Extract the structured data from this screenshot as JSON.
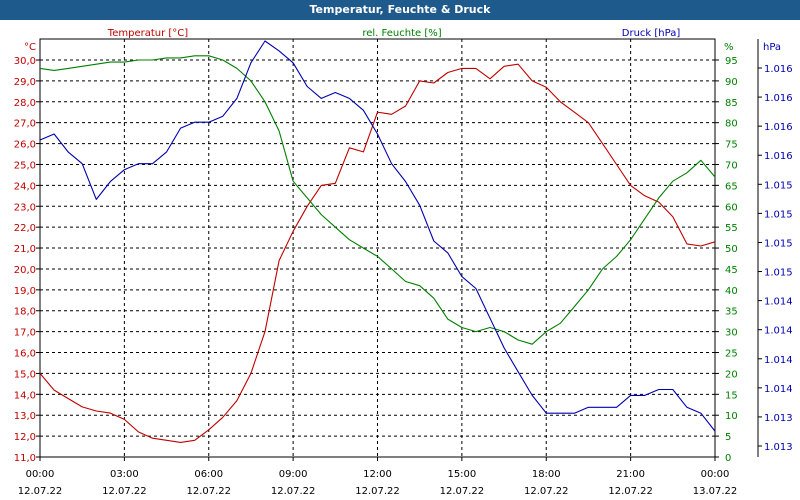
{
  "window_title": "Temperatur, Feuchte & Druck",
  "colors": {
    "title_bg": "#1f5a8c",
    "temperature": "#c00000",
    "humidity": "#008000",
    "pressure": "#0000b0",
    "axis": "#000000",
    "grid": "#000000"
  },
  "chart_data": {
    "type": "line",
    "title": "Temperatur, Feuchte & Druck",
    "x_ticks": [
      {
        "time": "00:00",
        "date": "12.07.22"
      },
      {
        "time": "03:00",
        "date": "12.07.22"
      },
      {
        "time": "06:00",
        "date": "12.07.22"
      },
      {
        "time": "09:00",
        "date": "12.07.22"
      },
      {
        "time": "12:00",
        "date": "12.07.22"
      },
      {
        "time": "15:00",
        "date": "12.07.22"
      },
      {
        "time": "18:00",
        "date": "12.07.22"
      },
      {
        "time": "21:00",
        "date": "12.07.22"
      },
      {
        "time": "00:00",
        "date": "13.07.22"
      }
    ],
    "xlim_hours": [
      0,
      24
    ],
    "grid": true,
    "axes": {
      "temperature": {
        "label": "Temperatur [°C]",
        "unit": "°C",
        "range": [
          11.0,
          30.0
        ],
        "ticks": [
          "30,0",
          "29,0",
          "28,0",
          "27,0",
          "26,0",
          "25,0",
          "24,0",
          "23,0",
          "22,0",
          "21,0",
          "20,0",
          "19,0",
          "18,0",
          "17,0",
          "16,0",
          "15,0",
          "14,0",
          "13,0",
          "12,0",
          "11,0"
        ]
      },
      "humidity": {
        "label": "rel. Feuchte [%]",
        "unit": "%",
        "range": [
          0,
          95
        ],
        "ticks": [
          "95",
          "90",
          "85",
          "80",
          "75",
          "70",
          "65",
          "60",
          "55",
          "50",
          "45",
          "40",
          "35",
          "30",
          "25",
          "20",
          "15",
          "10",
          "5",
          "0"
        ]
      },
      "pressure": {
        "label": "Druck [hPa]",
        "unit": "hPa",
        "range": [
          1012.85,
          1016.2
        ],
        "ticks": [
          "1.016",
          "1.016",
          "1.016",
          "1.016",
          "1.015",
          "1.015",
          "1.015",
          "1.015",
          "1.014",
          "1.014",
          "1.014",
          "1.014",
          "1.013",
          "1.013"
        ]
      }
    },
    "series": [
      {
        "name": "Temperatur [°C]",
        "axis": "temperature",
        "color": "#c00000",
        "x": [
          0,
          0.5,
          1,
          1.5,
          2,
          2.5,
          3,
          3.5,
          4,
          4.5,
          5,
          5.5,
          6,
          6.5,
          7,
          7.5,
          8,
          8.5,
          9,
          9.5,
          10,
          10.5,
          11,
          11.5,
          12,
          12.5,
          13,
          13.5,
          14,
          14.5,
          15,
          15.5,
          16,
          16.5,
          17,
          17.5,
          18,
          18.5,
          19,
          19.5,
          20,
          20.5,
          21,
          21.5,
          22,
          22.5,
          23,
          23.5,
          24
        ],
        "values": [
          15.0,
          14.2,
          13.8,
          13.4,
          13.2,
          13.1,
          12.8,
          12.2,
          11.9,
          11.8,
          11.7,
          11.8,
          12.3,
          12.9,
          13.7,
          15.0,
          17.0,
          20.4,
          21.8,
          23.0,
          24.0,
          24.1,
          25.8,
          25.6,
          27.5,
          27.4,
          27.8,
          29.0,
          28.9,
          29.4,
          29.6,
          29.6,
          29.1,
          29.7,
          29.8,
          29.0,
          28.7,
          28.0,
          27.5,
          27.0,
          26.0,
          25.0,
          24.0,
          23.5,
          23.2,
          22.5,
          21.2,
          21.1,
          21.3
        ]
      },
      {
        "name": "rel. Feuchte [%]",
        "axis": "humidity",
        "color": "#008000",
        "x": [
          0,
          0.5,
          1,
          1.5,
          2,
          2.5,
          3,
          3.5,
          4,
          4.5,
          5,
          5.5,
          6,
          6.5,
          7,
          7.5,
          8,
          8.5,
          9,
          9.5,
          10,
          10.5,
          11,
          11.5,
          12,
          12.5,
          13,
          13.5,
          14,
          14.5,
          15,
          15.5,
          16,
          16.5,
          17,
          17.5,
          18,
          18.5,
          19,
          19.5,
          20,
          20.5,
          21,
          21.5,
          22,
          22.5,
          23,
          23.5,
          24
        ],
        "values": [
          93,
          92.5,
          93,
          93.5,
          94,
          94.5,
          94.5,
          95,
          95,
          95.5,
          95.5,
          96,
          96,
          95,
          93,
          90,
          85,
          78,
          66,
          62,
          58,
          55,
          52,
          50,
          48,
          45,
          42,
          41,
          38,
          33,
          31,
          30,
          31,
          30,
          28,
          27,
          30,
          32,
          36,
          40,
          45,
          48,
          52,
          57,
          62,
          66,
          68,
          71,
          67
        ]
      },
      {
        "name": "Druck [hPa]",
        "axis": "pressure",
        "color": "#0000b0",
        "x": [
          0,
          0.5,
          1,
          1.5,
          2,
          2.5,
          3,
          3.5,
          4,
          4.5,
          5,
          5.5,
          6,
          6.5,
          7,
          7.5,
          8,
          8.5,
          9,
          9.5,
          10,
          10.5,
          11,
          11.5,
          12,
          12.5,
          13,
          13.5,
          14,
          14.5,
          15,
          15.5,
          16,
          16.5,
          17,
          17.5,
          18,
          18.5,
          19,
          19.5,
          20,
          20.5,
          21,
          21.5,
          22,
          22.5,
          23,
          23.5,
          24
        ],
        "values": [
          1015.35,
          1015.4,
          1015.25,
          1015.15,
          1014.85,
          1015.0,
          1015.1,
          1015.15,
          1015.15,
          1015.25,
          1015.45,
          1015.5,
          1015.5,
          1015.55,
          1015.7,
          1016.0,
          1016.2,
          1016.1,
          1016.0,
          1015.8,
          1015.7,
          1015.75,
          1015.7,
          1015.6,
          1015.4,
          1015.15,
          1015.0,
          1014.8,
          1014.5,
          1014.4,
          1014.2,
          1014.1,
          1013.85,
          1013.6,
          1013.4,
          1013.2,
          1013.05,
          1013.05,
          1013.05,
          1013.1,
          1013.1,
          1013.1,
          1013.2,
          1013.2,
          1013.25,
          1013.25,
          1013.1,
          1013.05,
          1012.9
        ]
      }
    ]
  }
}
